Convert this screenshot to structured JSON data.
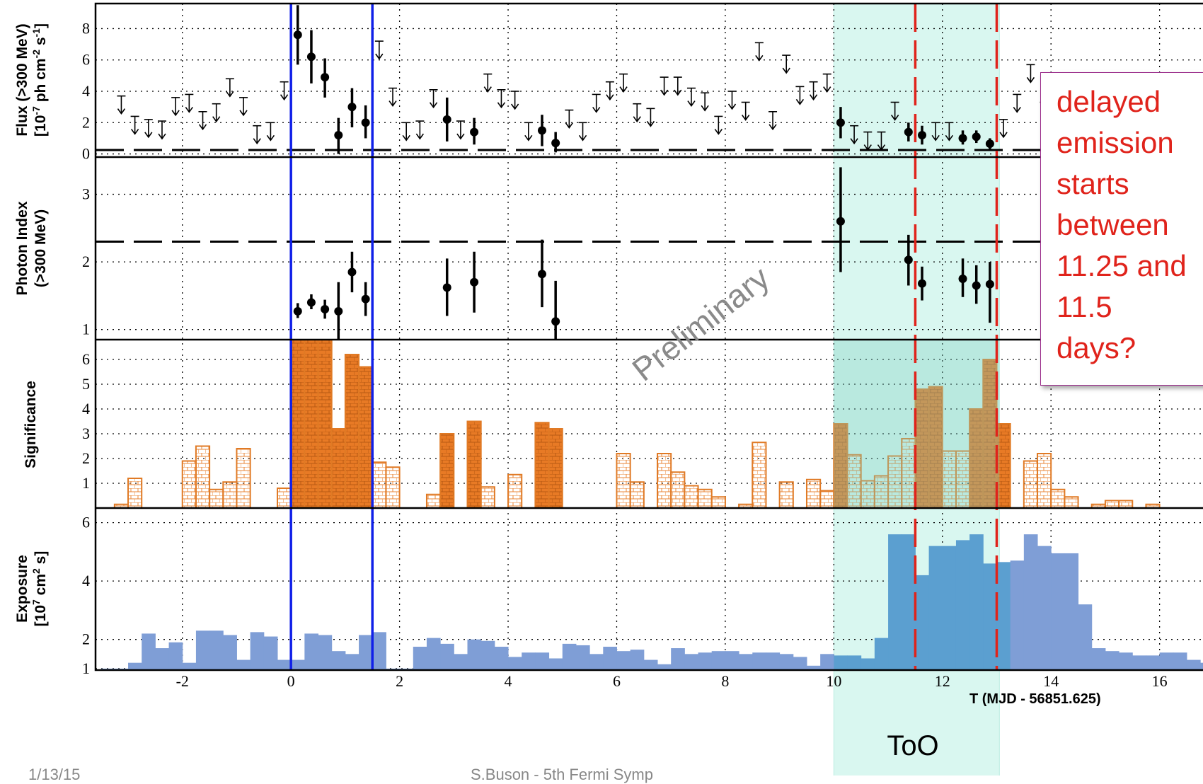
{
  "chart_data": {
    "type": "multi-panel-lightcurve",
    "x_label": "T (MJD - 56851.625)",
    "x_range": [
      -3.6,
      16.8
    ],
    "x_ticks": [
      -2,
      0,
      2,
      4,
      6,
      8,
      10,
      12,
      14,
      16
    ],
    "watermark": "Preliminary",
    "too_label": "ToO",
    "too_interval": [
      10.0,
      13.05
    ],
    "blue_lines": [
      0.0,
      1.5
    ],
    "red_dashed_lines": [
      11.5,
      13.0
    ],
    "panels": {
      "flux": {
        "ylabel": [
          "Flux (>300 MeV)",
          "[10",
          "-7",
          " ph cm",
          "-2",
          " s",
          "-1",
          "]"
        ],
        "y_range": [
          -0.2,
          9.6
        ],
        "y_ticks": [
          0,
          2,
          4,
          6,
          8
        ],
        "reference_level": 0.25,
        "points": [
          {
            "x": 0.125,
            "y": 7.6,
            "lo": 5.7,
            "hi": 9.5
          },
          {
            "x": 0.375,
            "y": 6.2,
            "lo": 4.5,
            "hi": 7.9
          },
          {
            "x": 0.625,
            "y": 4.9,
            "lo": 3.6,
            "hi": 6.1
          },
          {
            "x": 0.875,
            "y": 1.2,
            "lo": 0.0,
            "hi": 2.3
          },
          {
            "x": 1.125,
            "y": 3.0,
            "lo": 1.7,
            "hi": 4.2
          },
          {
            "x": 1.375,
            "y": 2.0,
            "lo": 1.0,
            "hi": 3.1
          },
          {
            "x": 2.875,
            "y": 2.2,
            "lo": 0.8,
            "hi": 3.6
          },
          {
            "x": 3.375,
            "y": 1.4,
            "lo": 0.6,
            "hi": 2.3
          },
          {
            "x": 4.625,
            "y": 1.5,
            "lo": 0.5,
            "hi": 2.5
          },
          {
            "x": 4.875,
            "y": 0.7,
            "lo": 0.1,
            "hi": 1.4
          },
          {
            "x": 10.125,
            "y": 2.0,
            "lo": 1.0,
            "hi": 3.0
          },
          {
            "x": 11.375,
            "y": 1.4,
            "lo": 0.8,
            "hi": 2.0
          },
          {
            "x": 11.625,
            "y": 1.2,
            "lo": 0.6,
            "hi": 1.8
          },
          {
            "x": 12.375,
            "y": 1.0,
            "lo": 0.6,
            "hi": 1.5
          },
          {
            "x": 12.625,
            "y": 1.1,
            "lo": 0.7,
            "hi": 1.5
          },
          {
            "x": 12.875,
            "y": 0.65,
            "lo": 0.3,
            "hi": 1.0
          }
        ],
        "upper_limits": [
          {
            "x": -3.125,
            "y": 3.7
          },
          {
            "x": -2.875,
            "y": 2.4
          },
          {
            "x": -2.625,
            "y": 2.2
          },
          {
            "x": -2.375,
            "y": 2.1
          },
          {
            "x": -2.125,
            "y": 3.6
          },
          {
            "x": -1.875,
            "y": 3.8
          },
          {
            "x": -1.625,
            "y": 2.7
          },
          {
            "x": -1.375,
            "y": 3.2
          },
          {
            "x": -1.125,
            "y": 4.8
          },
          {
            "x": -0.875,
            "y": 3.6
          },
          {
            "x": -0.625,
            "y": 1.8
          },
          {
            "x": -0.375,
            "y": 2.0
          },
          {
            "x": -0.125,
            "y": 4.6
          },
          {
            "x": 1.625,
            "y": 7.2
          },
          {
            "x": 1.875,
            "y": 4.2
          },
          {
            "x": 2.125,
            "y": 2.0
          },
          {
            "x": 2.375,
            "y": 2.1
          },
          {
            "x": 2.625,
            "y": 4.1
          },
          {
            "x": 3.125,
            "y": 2.1
          },
          {
            "x": 3.625,
            "y": 5.1
          },
          {
            "x": 3.875,
            "y": 4.1
          },
          {
            "x": 4.125,
            "y": 4.0
          },
          {
            "x": 4.375,
            "y": 2.0
          },
          {
            "x": 5.125,
            "y": 2.8
          },
          {
            "x": 5.375,
            "y": 2.0
          },
          {
            "x": 5.625,
            "y": 3.8
          },
          {
            "x": 5.875,
            "y": 4.6
          },
          {
            "x": 6.125,
            "y": 5.1
          },
          {
            "x": 6.375,
            "y": 3.2
          },
          {
            "x": 6.625,
            "y": 2.9
          },
          {
            "x": 6.875,
            "y": 4.9
          },
          {
            "x": 7.125,
            "y": 4.9
          },
          {
            "x": 7.375,
            "y": 4.2
          },
          {
            "x": 7.625,
            "y": 3.9
          },
          {
            "x": 7.875,
            "y": 2.4
          },
          {
            "x": 8.125,
            "y": 4.0
          },
          {
            "x": 8.375,
            "y": 3.3
          },
          {
            "x": 8.625,
            "y": 7.1
          },
          {
            "x": 8.875,
            "y": 2.7
          },
          {
            "x": 9.125,
            "y": 6.3
          },
          {
            "x": 9.375,
            "y": 4.3
          },
          {
            "x": 9.625,
            "y": 4.6
          },
          {
            "x": 9.875,
            "y": 5.1
          },
          {
            "x": 10.375,
            "y": 1.8
          },
          {
            "x": 10.625,
            "y": 1.4
          },
          {
            "x": 10.875,
            "y": 1.4
          },
          {
            "x": 11.125,
            "y": 3.3
          },
          {
            "x": 11.875,
            "y": 2.0
          },
          {
            "x": 12.125,
            "y": 2.0
          },
          {
            "x": 13.125,
            "y": 2.2
          },
          {
            "x": 13.375,
            "y": 3.8
          },
          {
            "x": 13.625,
            "y": 5.7
          },
          {
            "x": 13.875,
            "y": 3.3
          }
        ]
      },
      "index": {
        "ylabel": [
          "Photon Index",
          "(>300 MeV)"
        ],
        "y_range": [
          0.85,
          3.55
        ],
        "y_ticks": [
          1,
          2,
          3
        ],
        "reference_level": 2.3,
        "points": [
          {
            "x": 0.125,
            "y": 1.27,
            "lo": 1.17,
            "hi": 1.39
          },
          {
            "x": 0.375,
            "y": 1.4,
            "lo": 1.3,
            "hi": 1.52
          },
          {
            "x": 0.625,
            "y": 1.3,
            "lo": 1.16,
            "hi": 1.44
          },
          {
            "x": 0.875,
            "y": 1.27,
            "lo": 0.85,
            "hi": 1.7
          },
          {
            "x": 1.125,
            "y": 1.85,
            "lo": 1.55,
            "hi": 2.15
          },
          {
            "x": 1.375,
            "y": 1.45,
            "lo": 1.2,
            "hi": 1.7
          },
          {
            "x": 2.875,
            "y": 1.62,
            "lo": 1.2,
            "hi": 2.05
          },
          {
            "x": 3.375,
            "y": 1.7,
            "lo": 1.25,
            "hi": 2.15
          },
          {
            "x": 4.625,
            "y": 1.82,
            "lo": 1.33,
            "hi": 2.33
          },
          {
            "x": 4.875,
            "y": 1.12,
            "lo": 0.85,
            "hi": 1.72
          },
          {
            "x": 10.125,
            "y": 2.6,
            "lo": 1.85,
            "hi": 3.4
          },
          {
            "x": 11.375,
            "y": 2.03,
            "lo": 1.65,
            "hi": 2.4
          },
          {
            "x": 11.625,
            "y": 1.68,
            "lo": 1.43,
            "hi": 1.93
          },
          {
            "x": 12.375,
            "y": 1.75,
            "lo": 1.48,
            "hi": 2.05
          },
          {
            "x": 12.625,
            "y": 1.65,
            "lo": 1.38,
            "hi": 1.95
          },
          {
            "x": 12.875,
            "y": 1.67,
            "lo": 1.1,
            "hi": 2.0
          }
        ]
      },
      "significance": {
        "ylabel": [
          "Significance"
        ],
        "y_range": [
          0,
          6.8
        ],
        "y_ticks": [
          1,
          2,
          3,
          4,
          5,
          6
        ],
        "bin_width": 0.25,
        "bins": [
          [
            -3.25,
            0.15,
            0
          ],
          [
            -3.0,
            1.2,
            0
          ],
          [
            -2.0,
            1.9,
            0
          ],
          [
            -1.75,
            2.5,
            0
          ],
          [
            -1.5,
            0.75,
            0
          ],
          [
            -1.25,
            1.05,
            0
          ],
          [
            -1.0,
            2.4,
            0
          ],
          [
            -0.25,
            0.8,
            0
          ],
          [
            0.0,
            6.8,
            1
          ],
          [
            0.25,
            6.8,
            1
          ],
          [
            0.5,
            6.8,
            1
          ],
          [
            0.75,
            3.2,
            1
          ],
          [
            1.0,
            6.2,
            1
          ],
          [
            1.25,
            5.7,
            1
          ],
          [
            1.5,
            1.85,
            0
          ],
          [
            1.75,
            1.65,
            0
          ],
          [
            2.5,
            0.55,
            0
          ],
          [
            2.75,
            3.0,
            1
          ],
          [
            3.25,
            3.5,
            1
          ],
          [
            3.5,
            0.85,
            0
          ],
          [
            4.0,
            1.35,
            0
          ],
          [
            4.5,
            3.45,
            1
          ],
          [
            4.75,
            3.2,
            1
          ],
          [
            6.0,
            2.2,
            0
          ],
          [
            6.25,
            1.05,
            0
          ],
          [
            6.75,
            2.2,
            0
          ],
          [
            7.0,
            1.45,
            0
          ],
          [
            7.25,
            0.9,
            0
          ],
          [
            7.5,
            0.75,
            0
          ],
          [
            7.75,
            0.45,
            0
          ],
          [
            8.25,
            0.15,
            0
          ],
          [
            8.5,
            2.65,
            0
          ],
          [
            9.0,
            1.05,
            0
          ],
          [
            9.5,
            1.15,
            0
          ],
          [
            9.75,
            0.7,
            0
          ],
          [
            10.0,
            2.0,
            0
          ],
          [
            10.25,
            2.15,
            0
          ],
          [
            10.0,
            3.4,
            1
          ],
          [
            10.5,
            1.1,
            0
          ],
          [
            10.75,
            1.3,
            0
          ],
          [
            11.0,
            2.1,
            0
          ],
          [
            11.25,
            2.8,
            0
          ],
          [
            11.5,
            4.8,
            1
          ],
          [
            11.75,
            4.9,
            1
          ],
          [
            12.0,
            2.3,
            0
          ],
          [
            12.25,
            2.3,
            0
          ],
          [
            12.5,
            4.0,
            1
          ],
          [
            12.75,
            6.0,
            1
          ],
          [
            13.0,
            3.4,
            1
          ],
          [
            13.5,
            1.9,
            0
          ],
          [
            13.75,
            2.2,
            0
          ],
          [
            14.0,
            0.75,
            0
          ],
          [
            14.25,
            0.45,
            0
          ],
          [
            14.75,
            0.15,
            0
          ],
          [
            15.0,
            0.3,
            0
          ],
          [
            15.25,
            0.3,
            0
          ],
          [
            15.75,
            0.15,
            0
          ]
        ]
      },
      "exposure": {
        "ylabel": [
          "Exposure",
          "[10",
          "7",
          " cm",
          "2",
          " s]"
        ],
        "y_range": [
          0.95,
          6.5
        ],
        "y_ticks": [
          1,
          2,
          4,
          6
        ],
        "bin_width": 0.25,
        "values": [
          1.0,
          1.0,
          1.2,
          2.2,
          1.7,
          1.9,
          1.2,
          2.3,
          2.3,
          2.15,
          1.3,
          2.25,
          2.1,
          1.3,
          1.3,
          2.2,
          2.15,
          1.6,
          1.5,
          2.15,
          2.25,
          1.0,
          1.0,
          1.75,
          2.05,
          1.85,
          1.5,
          2.0,
          1.95,
          1.75,
          1.4,
          1.55,
          1.55,
          1.35,
          1.85,
          1.8,
          1.5,
          1.75,
          1.6,
          1.65,
          1.3,
          1.15,
          1.7,
          1.5,
          1.55,
          1.6,
          1.6,
          1.5,
          1.55,
          1.55,
          1.5,
          1.4,
          1.1,
          1.5,
          1.45,
          1.45,
          1.35,
          2.05,
          5.6,
          5.6,
          4.2,
          5.2,
          5.2,
          5.4,
          5.6,
          4.6,
          4.65,
          4.7,
          5.6,
          5.2,
          4.95,
          4.95,
          3.2,
          1.7,
          1.6,
          1.55,
          1.45,
          1.45,
          1.55,
          1.55,
          1.3,
          1.2,
          1.6,
          1.5,
          1.55,
          1.45
        ]
      }
    },
    "callout": "delayed\nemission\nstarts\nbetween\n11.25 and\n11.5\ndays?"
  },
  "footer": {
    "left": "1/13/15",
    "mid": "S.Buson - 5th Fermi Symp"
  }
}
